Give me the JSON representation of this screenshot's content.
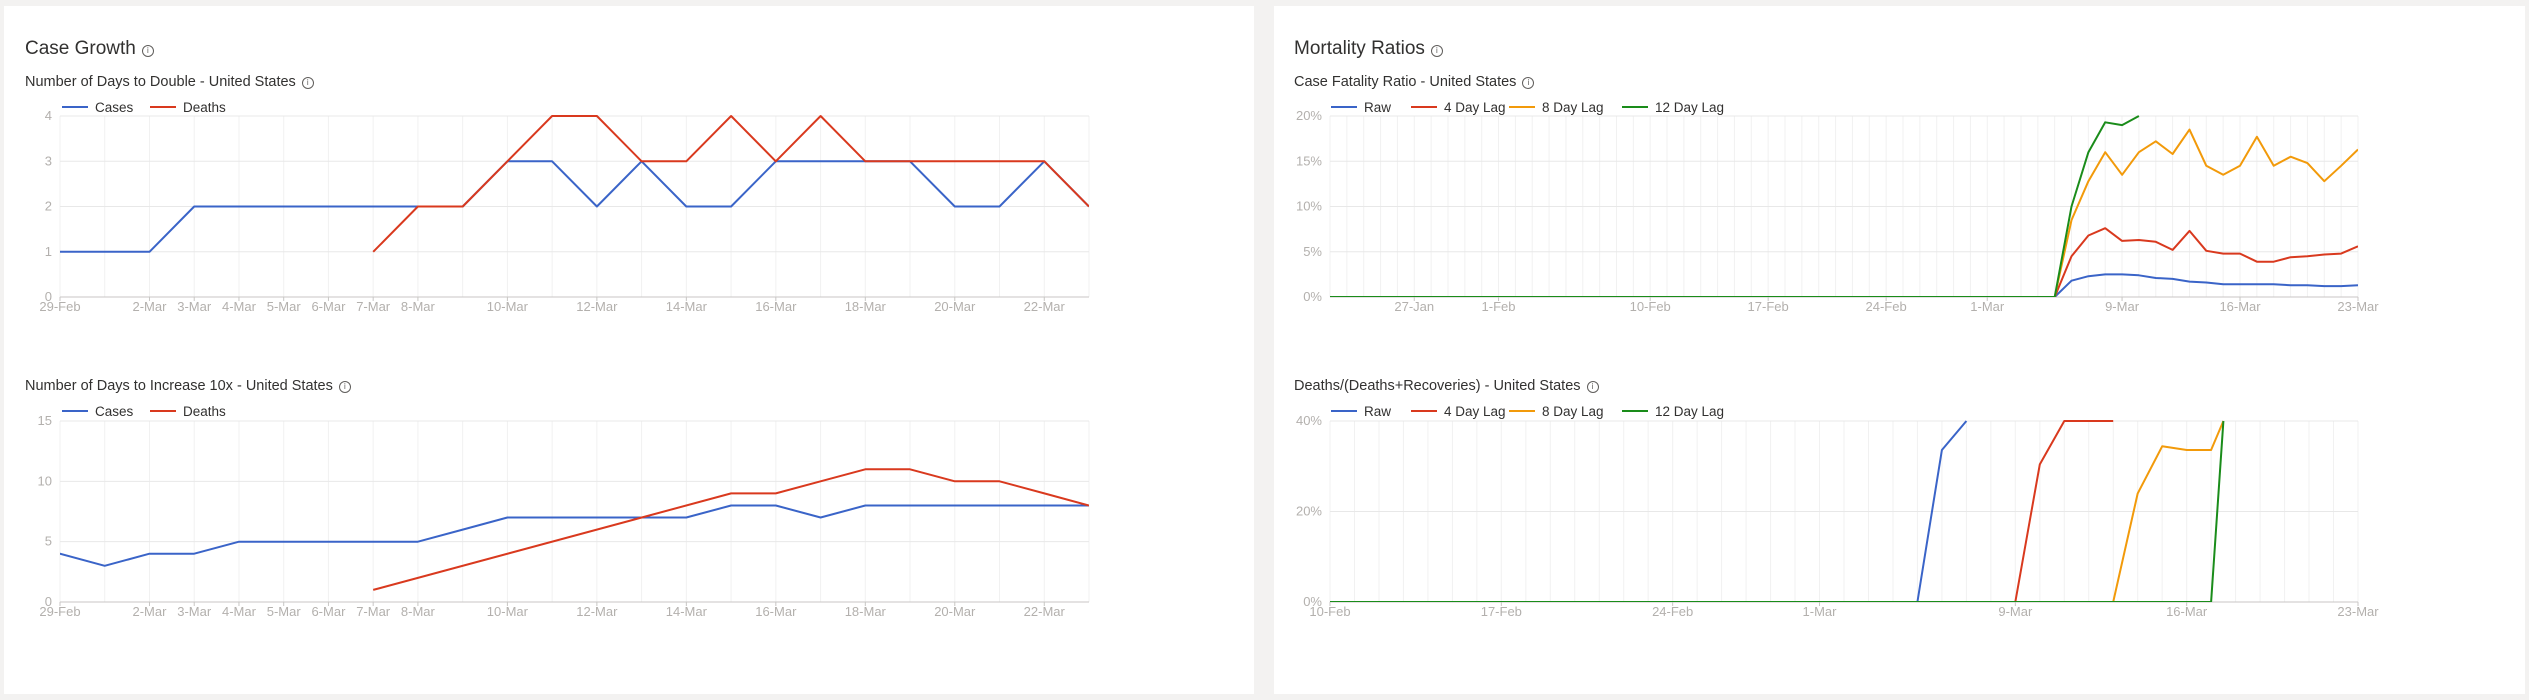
{
  "sections": [
    {
      "title": "Case Growth"
    },
    {
      "title": "Mortality Ratios"
    }
  ],
  "chart_data": [
    {
      "id": "double",
      "type": "line",
      "title": "Number of Days to Double - United States",
      "legend": [
        "Cases",
        "Deaths"
      ],
      "x_ticks": [
        "29-Feb",
        "2-Mar",
        "3-Mar",
        "4-Mar",
        "5-Mar",
        "6-Mar",
        "7-Mar",
        "8-Mar",
        "10-Mar",
        "12-Mar",
        "14-Mar",
        "16-Mar",
        "18-Mar",
        "20-Mar",
        "22-Mar"
      ],
      "y_ticks": [
        "0",
        "1",
        "2",
        "3",
        "4"
      ],
      "ylim": [
        0,
        4
      ],
      "x_start": "2020-02-29",
      "x_end": "2020-03-23",
      "series": [
        {
          "name": "Cases",
          "color": "#3a64c8",
          "x": [
            "2020-02-29",
            "2020-03-02",
            "2020-03-03",
            "2020-03-04",
            "2020-03-05",
            "2020-03-06",
            "2020-03-07",
            "2020-03-08",
            "2020-03-09",
            "2020-03-10",
            "2020-03-11",
            "2020-03-12",
            "2020-03-13",
            "2020-03-14",
            "2020-03-15",
            "2020-03-16",
            "2020-03-17",
            "2020-03-18",
            "2020-03-19",
            "2020-03-20",
            "2020-03-21",
            "2020-03-22",
            "2020-03-23"
          ],
          "y": [
            1,
            1,
            2,
            2,
            2,
            2,
            2,
            2,
            2,
            3,
            3,
            2,
            3,
            2,
            2,
            3,
            3,
            3,
            3,
            2,
            2,
            3,
            2
          ]
        },
        {
          "name": "Deaths",
          "color": "#d9391e",
          "x": [
            "2020-03-07",
            "2020-03-08",
            "2020-03-09",
            "2020-03-10",
            "2020-03-11",
            "2020-03-12",
            "2020-03-13",
            "2020-03-14",
            "2020-03-15",
            "2020-03-16",
            "2020-03-17",
            "2020-03-18",
            "2020-03-19",
            "2020-03-20",
            "2020-03-21",
            "2020-03-22",
            "2020-03-23"
          ],
          "y": [
            1,
            2,
            2,
            3,
            4,
            4,
            3,
            3,
            4,
            3,
            4,
            3,
            3,
            3,
            3,
            3,
            2
          ]
        }
      ]
    },
    {
      "id": "tenx",
      "type": "line",
      "title": "Number of Days to Increase 10x - United States",
      "legend": [
        "Cases",
        "Deaths"
      ],
      "x_ticks": [
        "29-Feb",
        "2-Mar",
        "3-Mar",
        "4-Mar",
        "5-Mar",
        "6-Mar",
        "7-Mar",
        "8-Mar",
        "10-Mar",
        "12-Mar",
        "14-Mar",
        "16-Mar",
        "18-Mar",
        "20-Mar",
        "22-Mar"
      ],
      "y_ticks": [
        "0",
        "5",
        "10",
        "15"
      ],
      "ylim": [
        0,
        15
      ],
      "x_start": "2020-02-29",
      "x_end": "2020-03-23",
      "series": [
        {
          "name": "Cases",
          "color": "#3a64c8",
          "x": [
            "2020-02-28",
            "2020-02-29",
            "2020-03-01",
            "2020-03-02",
            "2020-03-03",
            "2020-03-04",
            "2020-03-05",
            "2020-03-06",
            "2020-03-07",
            "2020-03-08",
            "2020-03-09",
            "2020-03-10",
            "2020-03-11",
            "2020-03-12",
            "2020-03-13",
            "2020-03-14",
            "2020-03-15",
            "2020-03-16",
            "2020-03-17",
            "2020-03-18",
            "2020-03-19",
            "2020-03-20",
            "2020-03-21",
            "2020-03-22",
            "2020-03-23"
          ],
          "y": [
            3,
            4,
            3,
            4,
            4,
            5,
            5,
            5,
            5,
            5,
            6,
            7,
            7,
            7,
            7,
            7,
            8,
            8,
            7,
            8,
            8,
            8,
            8,
            8,
            8
          ]
        },
        {
          "name": "Deaths",
          "color": "#d9391e",
          "x": [
            "2020-03-07",
            "2020-03-15",
            "2020-03-16",
            "2020-03-17",
            "2020-03-18",
            "2020-03-19",
            "2020-03-20",
            "2020-03-21",
            "2020-03-22",
            "2020-03-23"
          ],
          "y": [
            1,
            9,
            9,
            10,
            11,
            11,
            10,
            10,
            9,
            8
          ]
        }
      ]
    },
    {
      "id": "cfr",
      "type": "line",
      "title": "Case Fatality Ratio - United States",
      "legend": [
        "Raw",
        "4 Day Lag",
        "8 Day Lag",
        "12 Day Lag"
      ],
      "x_ticks": [
        "27-Jan",
        "1-Feb",
        "10-Feb",
        "17-Feb",
        "24-Feb",
        "1-Mar",
        "9-Mar",
        "16-Mar",
        "23-Mar"
      ],
      "y_ticks": [
        "0%",
        "5%",
        "10%",
        "15%",
        "20%"
      ],
      "ylim": [
        0,
        20
      ],
      "x_start": "2020-01-22",
      "x_end": "2020-03-23",
      "series": [
        {
          "name": "Raw",
          "color": "#3a64c8",
          "x": [
            "2020-01-22",
            "2020-03-05",
            "2020-03-06",
            "2020-03-07",
            "2020-03-08",
            "2020-03-09",
            "2020-03-10",
            "2020-03-11",
            "2020-03-12",
            "2020-03-13",
            "2020-03-14",
            "2020-03-15",
            "2020-03-16",
            "2020-03-17",
            "2020-03-18",
            "2020-03-19",
            "2020-03-20",
            "2020-03-21",
            "2020-03-22",
            "2020-03-23"
          ],
          "y": [
            0,
            0,
            1.8,
            2.3,
            2.5,
            2.5,
            2.4,
            2.1,
            2.0,
            1.7,
            1.6,
            1.4,
            1.4,
            1.4,
            1.4,
            1.3,
            1.3,
            1.2,
            1.2,
            1.3
          ]
        },
        {
          "name": "4 Day Lag",
          "color": "#d9391e",
          "x": [
            "2020-01-22",
            "2020-03-05",
            "2020-03-06",
            "2020-03-07",
            "2020-03-08",
            "2020-03-09",
            "2020-03-10",
            "2020-03-11",
            "2020-03-12",
            "2020-03-13",
            "2020-03-14",
            "2020-03-15",
            "2020-03-16",
            "2020-03-17",
            "2020-03-18",
            "2020-03-19",
            "2020-03-20",
            "2020-03-21",
            "2020-03-22",
            "2020-03-23"
          ],
          "y": [
            0,
            0,
            4.5,
            6.8,
            7.6,
            6.2,
            6.3,
            6.1,
            5.2,
            7.3,
            5.1,
            4.8,
            4.8,
            3.9,
            3.9,
            4.4,
            4.5,
            4.7,
            4.8,
            5.6
          ]
        },
        {
          "name": "8 Day Lag",
          "color": "#f29a0a",
          "x": [
            "2020-01-22",
            "2020-03-05",
            "2020-03-06",
            "2020-03-07",
            "2020-03-08",
            "2020-03-09",
            "2020-03-10",
            "2020-03-11",
            "2020-03-12",
            "2020-03-13",
            "2020-03-14",
            "2020-03-15",
            "2020-03-16",
            "2020-03-17",
            "2020-03-18",
            "2020-03-19",
            "2020-03-20",
            "2020-03-21",
            "2020-03-22",
            "2020-03-23"
          ],
          "y": [
            0,
            0,
            8.5,
            12.8,
            16,
            13.5,
            16,
            17.2,
            15.8,
            18.5,
            14.5,
            13.5,
            14.5,
            17.7,
            14.5,
            15.5,
            14.8,
            12.8,
            14.5,
            16.3
          ]
        },
        {
          "name": "12 Day Lag",
          "color": "#1a8c1a",
          "x": [
            "2020-01-22",
            "2020-03-05",
            "2020-03-06",
            "2020-03-07",
            "2020-03-08",
            "2020-03-09",
            "2020-03-10"
          ],
          "y": [
            0,
            0,
            10,
            16,
            19.3,
            19,
            20
          ]
        }
      ]
    },
    {
      "id": "recov",
      "type": "line",
      "title": "Deaths/(Deaths+Recoveries) - United States",
      "legend": [
        "Raw",
        "4 Day Lag",
        "8 Day Lag",
        "12 Day Lag"
      ],
      "x_ticks": [
        "10-Feb",
        "17-Feb",
        "24-Feb",
        "1-Mar",
        "9-Mar",
        "16-Mar",
        "23-Mar"
      ],
      "y_ticks": [
        "0%",
        "20%",
        "40%"
      ],
      "ylim": [
        0,
        50
      ],
      "x_start": "2020-02-10",
      "x_end": "2020-03-23",
      "series": [
        {
          "name": "Raw",
          "color": "#3a64c8",
          "x": [
            "2020-02-10",
            "2020-03-05",
            "2020-03-06",
            "2020-03-07"
          ],
          "y": [
            0,
            0,
            42,
            50
          ]
        },
        {
          "name": "4 Day Lag",
          "color": "#d9391e",
          "x": [
            "2020-02-10",
            "2020-03-09",
            "2020-03-10",
            "2020-03-11",
            "2020-03-12",
            "2020-03-13"
          ],
          "y": [
            0,
            0,
            38,
            50,
            50,
            50
          ]
        },
        {
          "name": "8 Day Lag",
          "color": "#f29a0a",
          "x": [
            "2020-02-10",
            "2020-03-13",
            "2020-03-14",
            "2020-03-15",
            "2020-03-16",
            "2020-03-17",
            "2020-03-17.5"
          ],
          "y": [
            0,
            0,
            30,
            43,
            42,
            42,
            50
          ]
        },
        {
          "name": "12 Day Lag",
          "color": "#1a8c1a",
          "x": [
            "2020-02-10",
            "2020-03-17",
            "2020-03-17.5"
          ],
          "y": [
            0,
            0,
            50
          ]
        }
      ]
    }
  ]
}
